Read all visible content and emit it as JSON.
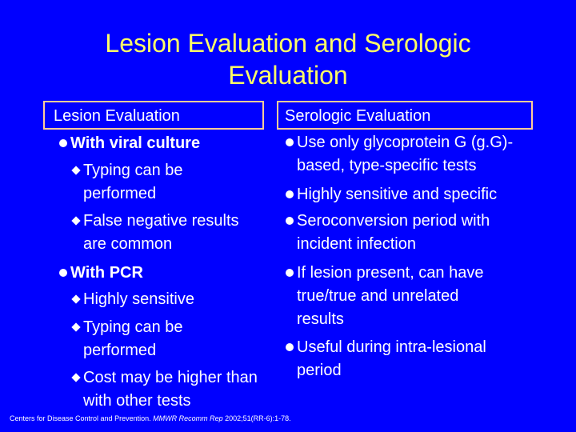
{
  "title": {
    "line1": "Lesion Evaluation and Serologic",
    "line2": "Evaluation"
  },
  "left": {
    "header": "Lesion Evaluation",
    "items": [
      {
        "label": "With viral culture"
      },
      {
        "label": "Typing can be"
      },
      {
        "label": "performed"
      },
      {
        "label": "False negative results"
      },
      {
        "label": "are common"
      },
      {
        "label": "With PCR"
      },
      {
        "label": "Highly sensitive"
      },
      {
        "label": "Typing can be"
      },
      {
        "label": "performed"
      },
      {
        "label": "Cost may be higher than"
      },
      {
        "label": "with other tests"
      }
    ]
  },
  "right": {
    "header": "Serologic Evaluation",
    "items": [
      {
        "label": "Use only glycoprotein G (g.G)-"
      },
      {
        "label": "based, type-specific tests"
      },
      {
        "label": "Highly sensitive and specific"
      },
      {
        "label": "Seroconversion period with"
      },
      {
        "label": "incident infection"
      },
      {
        "label": "If lesion present, can  have"
      },
      {
        "label": "true/true and unrelated"
      },
      {
        "label": "results"
      },
      {
        "label": "Useful during intra-lesional"
      },
      {
        "label": "period"
      }
    ]
  },
  "citation": {
    "prefix": "Centers for Disease Control and Prevention. ",
    "journal": "MMWR Recomm Rep",
    "suffix": " 2002;51(RR-6):1-78."
  },
  "colors": {
    "background": "#0000ff",
    "title": "#ffff66",
    "text": "#ffffff",
    "box_border": "#ffcc99"
  }
}
